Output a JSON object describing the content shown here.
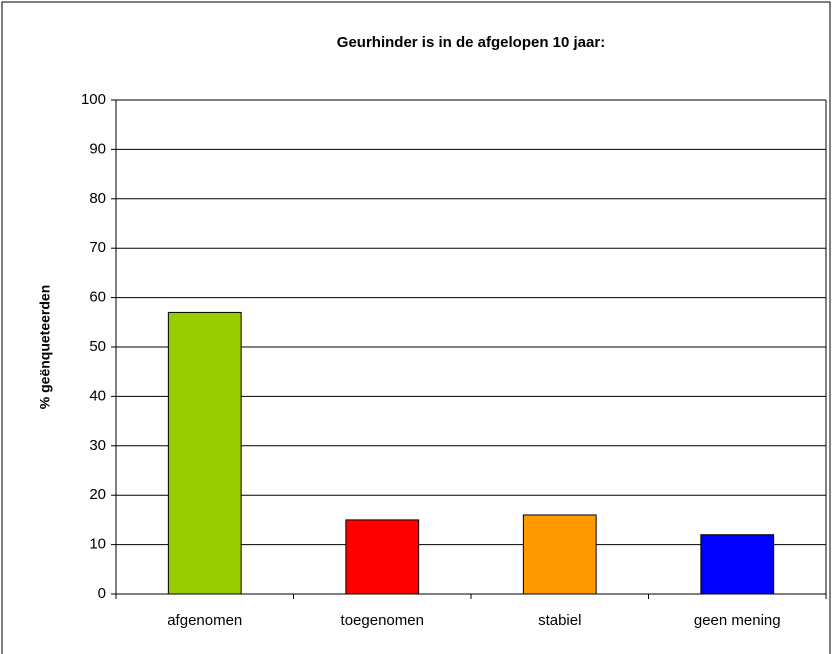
{
  "chart_data": {
    "type": "bar",
    "title": "Geurhinder is in de afgelopen 10 jaar:",
    "y_label": "% geënqueteerden",
    "categories": [
      "afgenomen",
      "toegenomen",
      "stabiel",
      "geen mening"
    ],
    "values": [
      57,
      15,
      16,
      12
    ],
    "colors": [
      "#99cc00",
      "#ff0000",
      "#ff9900",
      "#0000ff"
    ],
    "ylim": [
      0,
      100
    ],
    "yticks": [
      0,
      10,
      20,
      30,
      40,
      50,
      60,
      70,
      80,
      90,
      100
    ],
    "grid": true
  }
}
